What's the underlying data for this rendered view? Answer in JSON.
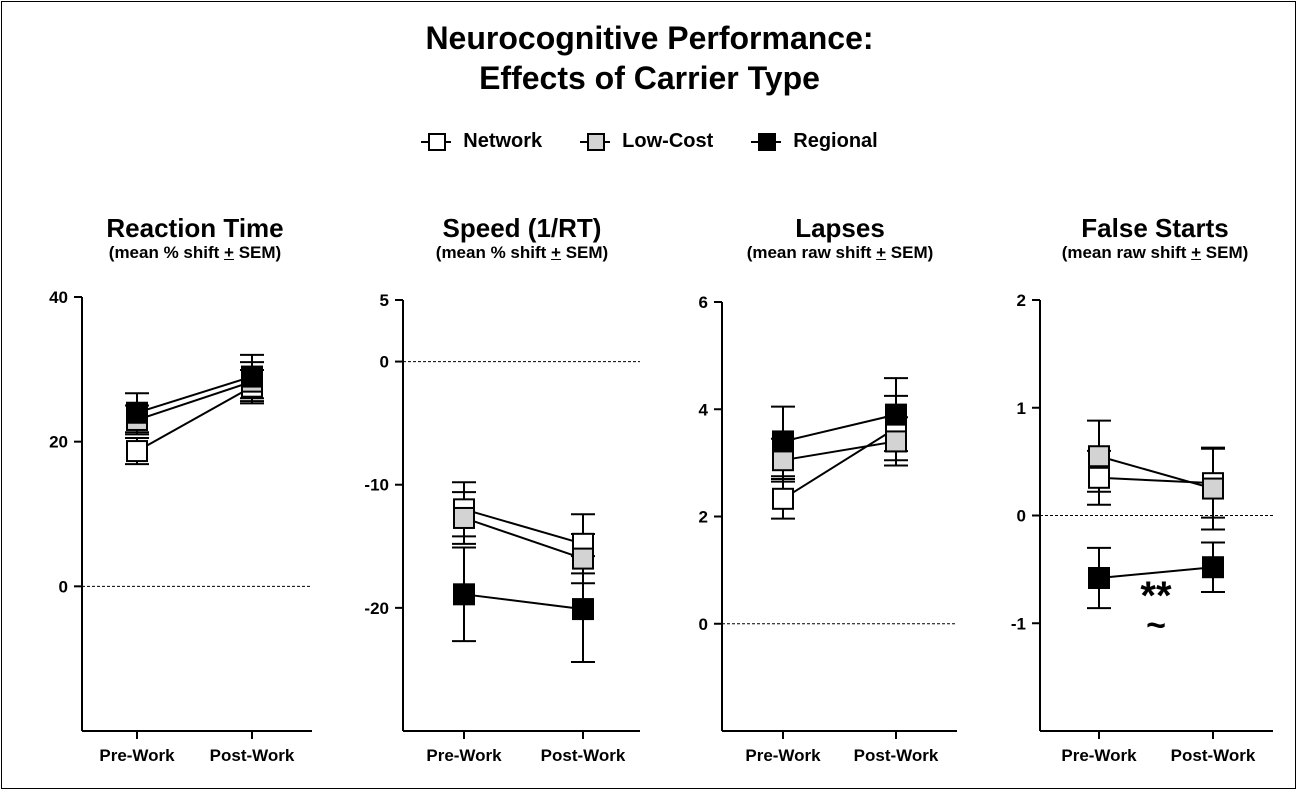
{
  "title": {
    "line1": "Neurocognitive Performance:",
    "line2": "Effects of Carrier Type"
  },
  "legend": [
    {
      "label": "Network",
      "color": "#ffffff"
    },
    {
      "label": "Low-Cost",
      "color": "#d3d3d3"
    },
    {
      "label": "Regional",
      "color": "#000000"
    }
  ],
  "chart_data": [
    {
      "type": "line",
      "title": "Reaction Time",
      "subtitle_pre": "(mean % shift ",
      "subtitle_pm": "+",
      "subtitle_post": " SEM)",
      "categories": [
        "Pre-Work",
        "Post-Work"
      ],
      "ylim": [
        -20,
        40
      ],
      "yticks": [
        0,
        20,
        40
      ],
      "series": [
        {
          "name": "Network",
          "color": "#ffffff",
          "values": [
            18.7,
            27.6
          ],
          "sem": [
            1.8,
            2.3
          ]
        },
        {
          "name": "Low-Cost",
          "color": "#d3d3d3",
          "values": [
            23.0,
            28.3
          ],
          "sem": [
            2.0,
            2.7
          ]
        },
        {
          "name": "Regional",
          "color": "#000000",
          "values": [
            24.0,
            29.0
          ],
          "sem": [
            2.7,
            3.0
          ]
        }
      ],
      "annotations": []
    },
    {
      "type": "line",
      "title": "Speed (1/RT)",
      "subtitle_pre": "(mean % shift ",
      "subtitle_pm": "+",
      "subtitle_post": " SEM)",
      "categories": [
        "Pre-Work",
        "Post-Work"
      ],
      "ylim": [
        -30,
        5
      ],
      "yticks": [
        5,
        0,
        -10,
        -20
      ],
      "series": [
        {
          "name": "Network",
          "color": "#ffffff",
          "values": [
            -12.0,
            -14.8
          ],
          "sem": [
            2.2,
            2.4
          ]
        },
        {
          "name": "Low-Cost",
          "color": "#d3d3d3",
          "values": [
            -12.7,
            -16.0
          ],
          "sem": [
            2.1,
            2.0
          ]
        },
        {
          "name": "Regional",
          "color": "#000000",
          "values": [
            -18.9,
            -20.1
          ],
          "sem": [
            3.8,
            4.3
          ]
        }
      ],
      "annotations": []
    },
    {
      "type": "line",
      "title": "Lapses",
      "subtitle_pre": "(mean raw shift ",
      "subtitle_pm": "+",
      "subtitle_post": " SEM)",
      "categories": [
        "Pre-Work",
        "Post-Work"
      ],
      "ylim": [
        -2,
        6
      ],
      "yticks": [
        0,
        2,
        4,
        6
      ],
      "series": [
        {
          "name": "Network",
          "color": "#ffffff",
          "values": [
            2.33,
            3.65
          ],
          "sem": [
            0.37,
            0.6
          ]
        },
        {
          "name": "Low-Cost",
          "color": "#d3d3d3",
          "values": [
            3.05,
            3.4
          ],
          "sem": [
            0.4,
            0.45
          ]
        },
        {
          "name": "Regional",
          "color": "#000000",
          "values": [
            3.4,
            3.9
          ],
          "sem": [
            0.65,
            0.68
          ]
        }
      ],
      "annotations": []
    },
    {
      "type": "line",
      "title": "False Starts",
      "subtitle_pre": "(mean raw shift ",
      "subtitle_pm": "+",
      "subtitle_post": " SEM)",
      "categories": [
        "Pre-Work",
        "Post-Work"
      ],
      "ylim": [
        -2,
        2
      ],
      "yticks": [
        2,
        1,
        0,
        -1
      ],
      "series": [
        {
          "name": "Network",
          "color": "#ffffff",
          "values": [
            0.35,
            0.3
          ],
          "sem": [
            0.25,
            0.32
          ]
        },
        {
          "name": "Low-Cost",
          "color": "#d3d3d3",
          "values": [
            0.55,
            0.25
          ],
          "sem": [
            0.33,
            0.38
          ]
        },
        {
          "name": "Regional",
          "color": "#000000",
          "values": [
            -0.58,
            -0.48
          ],
          "sem": [
            0.28,
            0.23
          ]
        }
      ],
      "annotations": [
        {
          "text": "**",
          "x_between": 0.5,
          "y": -0.7
        },
        {
          "text": "~",
          "x_between": 0.5,
          "y": -1.03
        }
      ]
    }
  ]
}
